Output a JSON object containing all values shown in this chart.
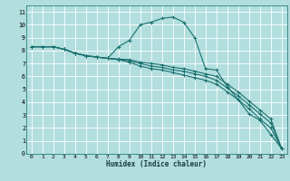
{
  "xlabel": "Humidex (Indice chaleur)",
  "bg_color": "#b2dede",
  "grid_color": "#ffffff",
  "line_color": "#1a7070",
  "xlim": [
    -0.5,
    23.5
  ],
  "ylim": [
    0,
    11.5
  ],
  "xtick_vals": [
    0,
    1,
    2,
    3,
    4,
    5,
    6,
    7,
    8,
    9,
    10,
    11,
    12,
    13,
    14,
    15,
    16,
    17,
    18,
    19,
    20,
    21,
    22,
    23
  ],
  "xtick_labels": [
    "0",
    "1",
    "2",
    "3",
    "4",
    "5",
    "6",
    "7",
    "8",
    "9",
    "10",
    "11",
    "12",
    "13",
    "14",
    "15",
    "16",
    "17",
    "18",
    "19",
    "20",
    "21",
    "22",
    "23"
  ],
  "ytick_vals": [
    0,
    1,
    2,
    3,
    4,
    5,
    6,
    7,
    8,
    9,
    10,
    11
  ],
  "ytick_labels": [
    "0",
    "1",
    "2",
    "3",
    "4",
    "5",
    "6",
    "7",
    "8",
    "9",
    "10",
    "11"
  ],
  "series": [
    {
      "x": [
        0,
        1,
        2,
        3,
        4,
        5,
        6,
        7,
        8,
        9,
        10,
        11,
        12,
        13,
        14,
        15,
        16,
        17,
        18,
        19,
        20,
        21,
        22,
        23
      ],
      "y": [
        8.3,
        8.3,
        8.3,
        8.1,
        7.8,
        7.6,
        7.5,
        7.4,
        8.3,
        8.8,
        10.0,
        10.2,
        10.5,
        10.6,
        10.2,
        9.0,
        6.6,
        6.5,
        5.2,
        4.2,
        3.1,
        2.6,
        1.5,
        0.4
      ]
    },
    {
      "x": [
        0,
        1,
        2,
        3,
        4,
        5,
        6,
        7,
        8,
        9,
        10,
        11,
        12,
        13,
        14,
        15,
        16,
        17,
        18,
        19,
        20,
        21,
        22,
        23
      ],
      "y": [
        8.3,
        8.3,
        8.3,
        8.1,
        7.8,
        7.6,
        7.5,
        7.4,
        7.35,
        7.3,
        7.1,
        7.0,
        6.9,
        6.7,
        6.6,
        6.4,
        6.2,
        6.0,
        5.4,
        4.8,
        4.1,
        3.4,
        2.7,
        0.4
      ]
    },
    {
      "x": [
        0,
        1,
        2,
        3,
        4,
        5,
        6,
        7,
        8,
        9,
        10,
        11,
        12,
        13,
        14,
        15,
        16,
        17,
        18,
        19,
        20,
        21,
        22,
        23
      ],
      "y": [
        8.3,
        8.3,
        8.3,
        8.1,
        7.8,
        7.6,
        7.5,
        7.4,
        7.3,
        7.2,
        7.0,
        6.8,
        6.7,
        6.5,
        6.4,
        6.2,
        6.0,
        5.7,
        5.1,
        4.5,
        3.8,
        3.1,
        2.4,
        0.4
      ]
    },
    {
      "x": [
        0,
        1,
        2,
        3,
        4,
        5,
        6,
        7,
        8,
        9,
        10,
        11,
        12,
        13,
        14,
        15,
        16,
        17,
        18,
        19,
        20,
        21,
        22,
        23
      ],
      "y": [
        8.3,
        8.3,
        8.3,
        8.1,
        7.8,
        7.6,
        7.5,
        7.4,
        7.3,
        7.1,
        6.8,
        6.6,
        6.5,
        6.3,
        6.1,
        5.9,
        5.7,
        5.4,
        4.8,
        4.2,
        3.5,
        2.7,
        2.0,
        0.4
      ]
    }
  ]
}
